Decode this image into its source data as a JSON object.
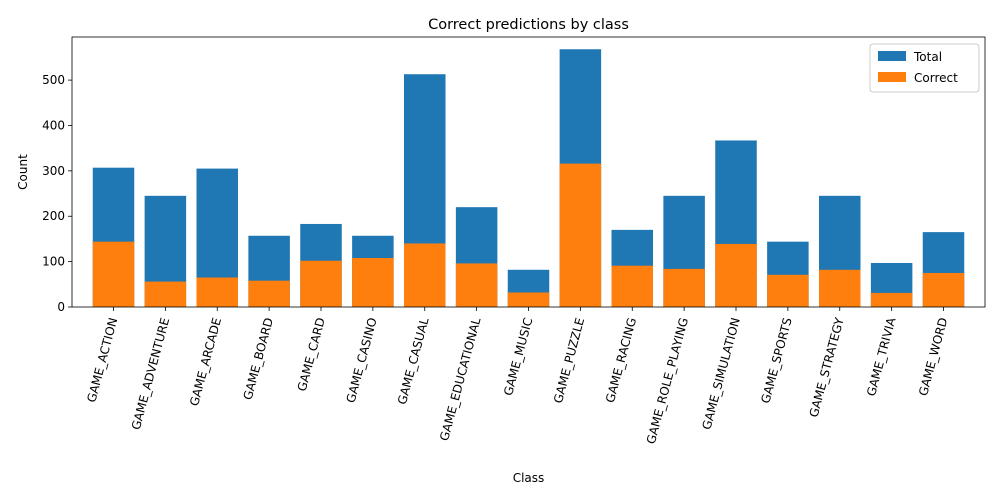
{
  "chart_data": {
    "type": "bar",
    "title": "Correct predictions by class",
    "xlabel": "Class",
    "ylabel": "Count",
    "ylim": [
      0,
      595
    ],
    "yticks": [
      0,
      100,
      200,
      300,
      400,
      500
    ],
    "legend_position": "top-right",
    "grid": false,
    "categories": [
      "GAME_ACTION",
      "GAME_ADVENTURE",
      "GAME_ARCADE",
      "GAME_BOARD",
      "GAME_CARD",
      "GAME_CASINO",
      "GAME_CASUAL",
      "GAME_EDUCATIONAL",
      "GAME_MUSIC",
      "GAME_PUZZLE",
      "GAME_RACING",
      "GAME_ROLE_PLAYING",
      "GAME_SIMULATION",
      "GAME_SPORTS",
      "GAME_STRATEGY",
      "GAME_TRIVIA",
      "GAME_WORD"
    ],
    "series": [
      {
        "name": "Total",
        "color": "#1f77b4",
        "values": [
          307,
          245,
          305,
          157,
          183,
          157,
          513,
          220,
          82,
          568,
          170,
          245,
          367,
          144,
          245,
          97,
          165
        ]
      },
      {
        "name": "Correct",
        "color": "#ff7f0e",
        "values": [
          144,
          56,
          65,
          58,
          102,
          108,
          140,
          96,
          32,
          316,
          91,
          84,
          139,
          71,
          82,
          31,
          75
        ]
      }
    ]
  }
}
